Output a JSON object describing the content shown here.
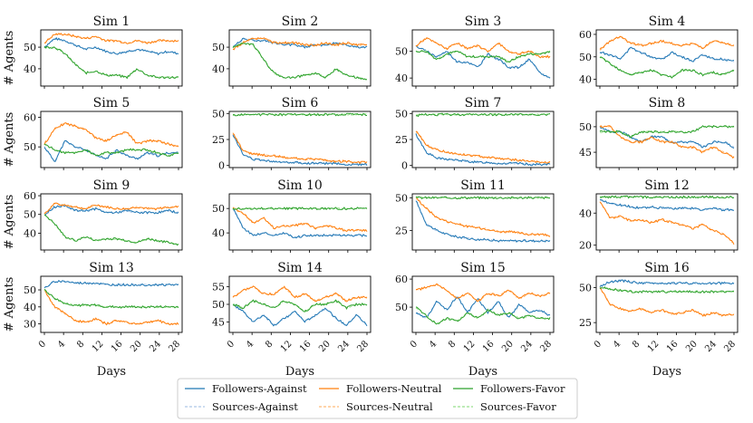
{
  "figure": {
    "legend_position": "bottom-center",
    "shared_xlabel": "Days"
  },
  "chart_data": {
    "type": "line",
    "days": 28,
    "xticks": [
      0,
      4,
      8,
      12,
      16,
      20,
      24,
      28
    ],
    "xlabel": "Days",
    "ylabel": "# Agents",
    "legend": [
      {
        "key": "fa",
        "label": "Followers-Against",
        "color": "#1f77b4",
        "style": "solid"
      },
      {
        "key": "fn",
        "label": "Followers-Neutral",
        "color": "#ff7f0e",
        "style": "solid"
      },
      {
        "key": "ff",
        "label": "Followers-Favor",
        "color": "#2ca02c",
        "style": "solid"
      },
      {
        "key": "sa",
        "label": "Sources-Against",
        "color": "#aec7e8",
        "style": "dashed"
      },
      {
        "key": "sn",
        "label": "Sources-Neutral",
        "color": "#ffbb78",
        "style": "dashed"
      },
      {
        "key": "sf",
        "label": "Sources-Favor",
        "color": "#98df8a",
        "style": "dashed"
      }
    ],
    "panels": [
      {
        "title": "Sim 1",
        "yticks": [
          40,
          50
        ],
        "ylim": [
          32,
          58
        ],
        "series": {
          "fa": [
            50,
            54,
            53,
            51,
            49,
            50,
            48,
            47,
            48,
            49,
            48,
            47,
            48,
            47
          ],
          "fn": [
            52,
            56,
            56,
            55,
            54,
            55,
            53,
            53,
            52,
            53,
            52,
            53,
            53,
            53
          ],
          "ff": [
            50,
            50,
            47,
            42,
            38,
            39,
            37,
            37,
            36,
            40,
            37,
            36,
            36,
            36
          ]
        }
      },
      {
        "title": "Sim 2",
        "yticks": [
          40,
          50
        ],
        "ylim": [
          32,
          58
        ],
        "series": {
          "fa": [
            50,
            54,
            53,
            53,
            52,
            51,
            51,
            50,
            51,
            51,
            52,
            51,
            50,
            50
          ],
          "fn": [
            49,
            52,
            54,
            54,
            52,
            52,
            52,
            51,
            51,
            52,
            51,
            52,
            51,
            51
          ],
          "ff": [
            50,
            52,
            51,
            44,
            38,
            36,
            36,
            37,
            38,
            36,
            40,
            37,
            36,
            35
          ]
        }
      },
      {
        "title": "Sim 3",
        "yticks": [
          40,
          50
        ],
        "ylim": [
          37,
          58
        ],
        "series": {
          "fa": [
            52,
            50,
            48,
            50,
            46,
            46,
            44,
            49,
            47,
            44,
            44,
            47,
            42,
            40
          ],
          "fn": [
            52,
            55,
            53,
            51,
            53,
            51,
            52,
            50,
            53,
            50,
            49,
            50,
            48,
            48
          ],
          "ff": [
            50,
            50,
            47,
            49,
            50,
            48,
            48,
            48,
            48,
            46,
            48,
            49,
            49,
            50
          ]
        }
      },
      {
        "title": "Sim 4",
        "yticks": [
          40,
          50,
          60
        ],
        "ylim": [
          37,
          62
        ],
        "series": {
          "fa": [
            52,
            51,
            49,
            54,
            52,
            50,
            49,
            52,
            50,
            48,
            51,
            49,
            49,
            48
          ],
          "fn": [
            53,
            57,
            59,
            56,
            55,
            56,
            57,
            56,
            55,
            56,
            54,
            57,
            56,
            55
          ],
          "ff": [
            50,
            47,
            44,
            42,
            43,
            44,
            42,
            41,
            44,
            44,
            42,
            43,
            42,
            44
          ]
        }
      },
      {
        "title": "Sim 5",
        "yticks": [
          50,
          60
        ],
        "ylim": [
          43,
          62
        ],
        "series": {
          "fa": [
            50,
            45,
            52,
            50,
            49,
            47,
            46,
            49,
            47,
            46,
            48,
            47,
            48,
            48
          ],
          "fn": [
            51,
            56,
            58,
            57,
            56,
            53,
            52,
            54,
            55,
            51,
            52,
            52,
            51,
            50
          ],
          "ff": [
            51,
            49,
            48,
            48,
            49,
            47,
            48,
            48,
            49,
            49,
            49,
            48,
            47,
            48
          ]
        }
      },
      {
        "title": "Sim 6",
        "yticks": [
          0,
          25,
          50
        ],
        "ylim": [
          -2,
          52
        ],
        "series": {
          "fa": [
            30,
            10,
            6,
            5,
            4,
            3,
            3,
            2,
            2,
            2,
            2,
            1,
            1,
            1
          ],
          "fn": [
            31,
            14,
            11,
            10,
            9,
            8,
            7,
            6,
            6,
            5,
            4,
            4,
            3,
            3
          ],
          "ff": [
            48,
            49,
            49,
            49,
            49,
            49,
            49,
            49,
            49,
            49,
            49,
            49,
            49,
            49
          ]
        }
      },
      {
        "title": "Sim 7",
        "yticks": [
          0,
          25,
          50
        ],
        "ylim": [
          -2,
          52
        ],
        "series": {
          "fa": [
            30,
            13,
            7,
            6,
            5,
            4,
            3,
            3,
            2,
            2,
            2,
            1,
            1,
            1
          ],
          "fn": [
            33,
            20,
            15,
            13,
            11,
            10,
            9,
            8,
            7,
            6,
            5,
            4,
            3,
            3
          ],
          "ff": [
            48,
            49,
            49,
            49,
            49,
            49,
            49,
            49,
            49,
            49,
            49,
            49,
            49,
            49
          ]
        }
      },
      {
        "title": "Sim 8",
        "yticks": [
          45,
          50
        ],
        "ylim": [
          42,
          53
        ],
        "series": {
          "fa": [
            50,
            49,
            49,
            48,
            47,
            48,
            48,
            47,
            47,
            47,
            46,
            47,
            47,
            46
          ],
          "fn": [
            50,
            50,
            48,
            47,
            47,
            48,
            47,
            47,
            46,
            46,
            45,
            46,
            45,
            44
          ],
          "ff": [
            49,
            49,
            49,
            48,
            49,
            49,
            49,
            49,
            49,
            49,
            50,
            50,
            50,
            50
          ]
        }
      },
      {
        "title": "Sim 9",
        "yticks": [
          40,
          50,
          60
        ],
        "ylim": [
          31,
          61
        ],
        "series": {
          "fa": [
            50,
            54,
            55,
            52,
            52,
            53,
            51,
            51,
            52,
            51,
            51,
            51,
            52,
            51
          ],
          "fn": [
            50,
            56,
            55,
            54,
            53,
            55,
            54,
            53,
            53,
            54,
            53,
            53,
            54,
            54
          ],
          "ff": [
            50,
            45,
            38,
            36,
            38,
            36,
            37,
            37,
            36,
            35,
            37,
            36,
            35,
            34
          ]
        }
      },
      {
        "title": "Sim 10",
        "yticks": [
          40,
          50
        ],
        "ylim": [
          33,
          56
        ],
        "series": {
          "fa": [
            50,
            42,
            39,
            40,
            39,
            40,
            38,
            39,
            39,
            39,
            39,
            39,
            39,
            39
          ],
          "fn": [
            50,
            48,
            44,
            46,
            42,
            43,
            43,
            44,
            42,
            43,
            42,
            41,
            41,
            41
          ],
          "ff": [
            50,
            50,
            50,
            50,
            50,
            50,
            50,
            50,
            50,
            50,
            50,
            50,
            50,
            50
          ]
        }
      },
      {
        "title": "Sim 11",
        "yticks": [
          25,
          50
        ],
        "ylim": [
          10,
          53
        ],
        "series": {
          "fa": [
            48,
            30,
            25,
            22,
            20,
            19,
            18,
            18,
            17,
            17,
            17,
            17,
            17,
            17
          ],
          "fn": [
            50,
            42,
            35,
            32,
            30,
            28,
            27,
            26,
            24,
            24,
            23,
            22,
            22,
            21
          ],
          "ff": [
            50,
            50,
            50,
            50,
            50,
            50,
            50,
            50,
            50,
            50,
            50,
            50,
            50,
            50
          ]
        }
      },
      {
        "title": "Sim 12",
        "yticks": [
          20,
          40
        ],
        "ylim": [
          17,
          52
        ],
        "series": {
          "fa": [
            48,
            46,
            45,
            44,
            43,
            44,
            43,
            43,
            43,
            43,
            42,
            43,
            42,
            42
          ],
          "fn": [
            47,
            37,
            38,
            35,
            36,
            34,
            36,
            34,
            33,
            30,
            33,
            29,
            27,
            21
          ],
          "ff": [
            50,
            50,
            50,
            50,
            50,
            50,
            50,
            50,
            50,
            50,
            50,
            50,
            50,
            50
          ]
        }
      },
      {
        "title": "Sim 13",
        "yticks": [
          30,
          40,
          50
        ],
        "ylim": [
          25,
          58
        ],
        "series": {
          "fa": [
            51,
            55,
            55,
            54,
            54,
            54,
            53,
            53,
            53,
            53,
            53,
            53,
            53,
            53
          ],
          "fn": [
            50,
            40,
            36,
            32,
            31,
            33,
            30,
            32,
            31,
            30,
            31,
            32,
            30,
            30
          ],
          "ff": [
            50,
            45,
            42,
            41,
            41,
            41,
            40,
            40,
            40,
            40,
            40,
            40,
            40,
            40
          ]
        }
      },
      {
        "title": "Sim 14",
        "yticks": [
          45,
          50,
          55
        ],
        "ylim": [
          42,
          58
        ],
        "series": {
          "fa": [
            50,
            48,
            45,
            47,
            44,
            46,
            48,
            45,
            47,
            49,
            46,
            44,
            47,
            44
          ],
          "fn": [
            52,
            54,
            55,
            53,
            53,
            55,
            52,
            53,
            51,
            52,
            53,
            51,
            52,
            52
          ],
          "ff": [
            50,
            49,
            51,
            50,
            49,
            51,
            50,
            48,
            50,
            50,
            51,
            49,
            50,
            50
          ]
        }
      },
      {
        "title": "Sim 15",
        "yticks": [
          50,
          60
        ],
        "ylim": [
          41,
          61
        ],
        "series": {
          "fa": [
            48,
            46,
            52,
            49,
            54,
            48,
            53,
            48,
            52,
            46,
            51,
            48,
            49,
            47
          ],
          "fn": [
            56,
            57,
            58,
            56,
            53,
            55,
            52,
            55,
            54,
            56,
            53,
            55,
            54,
            55
          ],
          "ff": [
            50,
            47,
            44,
            46,
            45,
            48,
            46,
            49,
            47,
            48,
            46,
            47,
            46,
            46
          ]
        }
      },
      {
        "title": "Sim 16",
        "yticks": [
          25,
          50
        ],
        "ylim": [
          18,
          58
        ],
        "series": {
          "fa": [
            51,
            54,
            55,
            54,
            53,
            53,
            53,
            53,
            53,
            53,
            53,
            53,
            53,
            53
          ],
          "fn": [
            50,
            38,
            35,
            33,
            35,
            32,
            34,
            31,
            32,
            34,
            30,
            32,
            30,
            31
          ],
          "ff": [
            50,
            49,
            48,
            47,
            47,
            47,
            47,
            47,
            47,
            47,
            47,
            47,
            47,
            47
          ]
        }
      }
    ]
  }
}
